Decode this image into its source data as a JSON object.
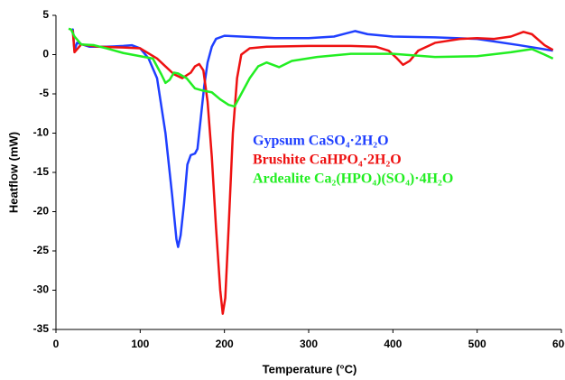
{
  "chart_data": {
    "type": "line",
    "xlabel": "Temperature (°C)",
    "ylabel": "Heatflow (mW)",
    "xlim": [
      0,
      600
    ],
    "xticks": [
      0,
      100,
      200,
      300,
      400,
      500,
      600
    ],
    "ylim": [
      -35,
      5
    ],
    "yticks": [
      -35,
      -30,
      -25,
      -20,
      -15,
      -10,
      -5,
      0,
      5
    ],
    "grid": false,
    "legend": "center",
    "series": [
      {
        "name": "Gypsum CaSO₄·2H₂O",
        "color": "#1f3fff",
        "x": [
          18,
          20,
          22,
          25,
          40,
          60,
          80,
          90,
          100,
          110,
          120,
          130,
          138,
          143,
          145,
          148,
          152,
          156,
          160,
          165,
          168,
          172,
          176,
          180,
          185,
          190,
          200,
          220,
          260,
          300,
          330,
          355,
          370,
          400,
          450,
          500,
          550,
          590
        ],
        "values": [
          3,
          3.2,
          0.5,
          1.5,
          1.0,
          1.0,
          1.1,
          1.2,
          0.8,
          -0.5,
          -3,
          -10,
          -18,
          -23.5,
          -24.5,
          -23,
          -19,
          -14,
          -12.8,
          -12.6,
          -12,
          -8,
          -4,
          -1,
          1,
          2,
          2.4,
          2.3,
          2.1,
          2.1,
          2.3,
          3.0,
          2.6,
          2.3,
          2.2,
          2.0,
          1.2,
          0.5
        ]
      },
      {
        "name": "Brushite CaHPO₄·2H₂O",
        "color": "#ee1111",
        "x": [
          18,
          20,
          22,
          30,
          50,
          80,
          100,
          120,
          130,
          140,
          150,
          160,
          165,
          170,
          175,
          180,
          185,
          190,
          195,
          198,
          201,
          205,
          210,
          215,
          220,
          230,
          250,
          300,
          350,
          380,
          395,
          405,
          412,
          420,
          430,
          450,
          480,
          500,
          520,
          540,
          555,
          565,
          580,
          590
        ],
        "values": [
          3,
          3,
          0.3,
          1.3,
          1.0,
          0.9,
          0.8,
          -0.5,
          -1.5,
          -2.5,
          -3,
          -2.3,
          -1.5,
          -1.2,
          -2,
          -6,
          -13,
          -22,
          -30,
          -33,
          -31,
          -22,
          -10,
          -3,
          0,
          0.8,
          1.0,
          1.1,
          1.1,
          1.0,
          0.5,
          -0.5,
          -1.3,
          -0.8,
          0.5,
          1.5,
          2.0,
          2.1,
          2.0,
          2.3,
          2.9,
          2.6,
          1.2,
          0.6
        ]
      },
      {
        "name": "Ardealite Ca₂(HPO₄)(SO₄)·4H₂O",
        "color": "#22ee22",
        "x": [
          15,
          18,
          22,
          30,
          45,
          60,
          80,
          100,
          115,
          125,
          130,
          135,
          140,
          145,
          155,
          165,
          175,
          185,
          195,
          205,
          212,
          220,
          230,
          240,
          250,
          265,
          280,
          310,
          350,
          400,
          450,
          500,
          540,
          565,
          580,
          590
        ],
        "values": [
          3.3,
          3.2,
          2.3,
          1.3,
          1.2,
          0.8,
          0.2,
          -0.2,
          -0.5,
          -2.5,
          -3.6,
          -3.2,
          -2.3,
          -2.4,
          -3,
          -4.3,
          -4.6,
          -4.8,
          -5.7,
          -6.4,
          -6.6,
          -5,
          -3,
          -1.5,
          -1.0,
          -1.6,
          -0.8,
          -0.3,
          0.1,
          0.1,
          -0.3,
          -0.2,
          0.3,
          0.7,
          0,
          -0.5
        ]
      }
    ]
  }
}
